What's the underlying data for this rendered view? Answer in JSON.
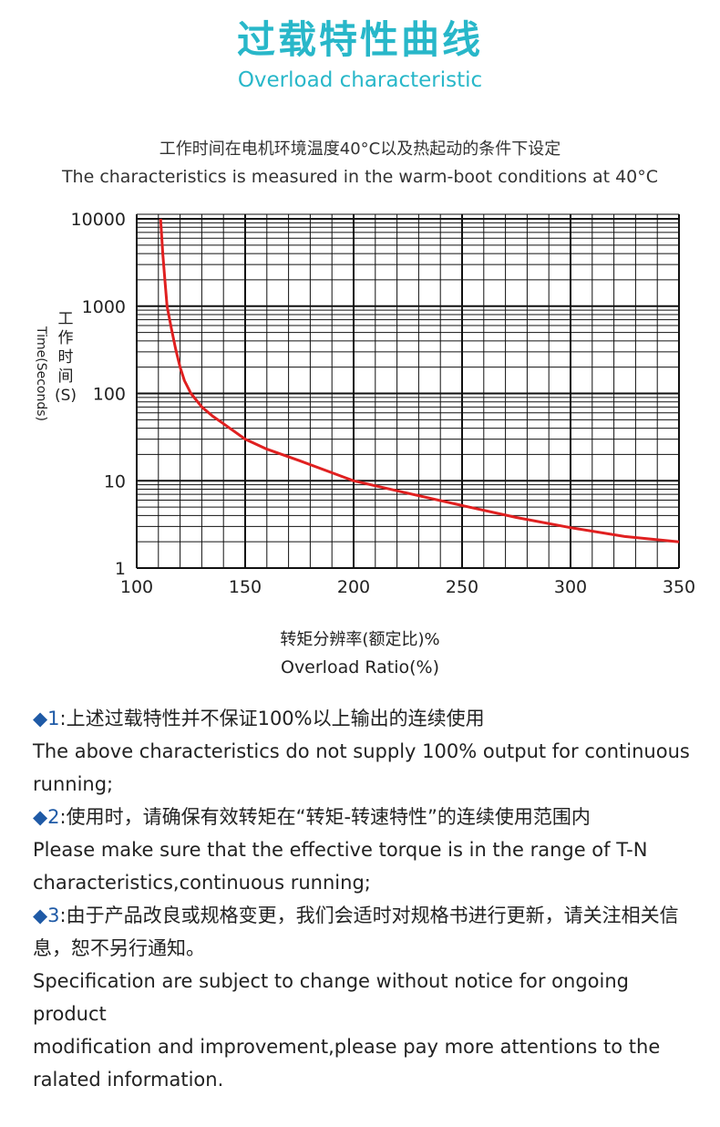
{
  "header": {
    "title_cn": "过载特性曲线",
    "title_en": "Overload characteristic",
    "title_color": "#28b7c9"
  },
  "conditions": {
    "cn": "工作时间在电机环境温度40°C以及热起动的条件下设定",
    "en": "The characteristics is measured in the warm-boot conditions at 40°C"
  },
  "chart_data": {
    "type": "line",
    "xlabel": "转矩分辨率(额定比)% Overload Ratio(%)",
    "xlabel_cn": "转矩分辨率(额定比)%",
    "xlabel_en": "Overload Ratio(%)",
    "ylabel_cn": "工作时间(S)",
    "ylabel_en": "Time(Seconds)",
    "xlim": [
      100,
      350
    ],
    "ylim": [
      1,
      10000
    ],
    "y_scale": "log",
    "x_ticks": [
      "100",
      "150",
      "200",
      "250",
      "300",
      "350"
    ],
    "y_ticks": [
      "1",
      "10",
      "100",
      "1000",
      "10000"
    ],
    "grid": true,
    "line_color": "#e02020",
    "series": [
      {
        "x": [
          111,
          112,
          113,
          114,
          116,
          118,
          120,
          122,
          125,
          130,
          135,
          140,
          150,
          160,
          175,
          200,
          225,
          250,
          275,
          300,
          325,
          350
        ],
        "values": [
          10000,
          4000,
          2000,
          1000,
          550,
          320,
          200,
          140,
          100,
          70,
          55,
          45,
          30,
          23,
          17,
          10,
          7.2,
          5.2,
          3.8,
          2.9,
          2.3,
          2.0
        ]
      }
    ]
  },
  "notes": [
    {
      "marker": "◆1",
      "cn": ":上述过载特性并不保证100%以上输出的连续使用",
      "en": "The above characteristics do not supply 100% output for continuous running;"
    },
    {
      "marker": "◆2",
      "cn": ":使用时，请确保有效转矩在“转矩-转速特性”的连续使用范围内",
      "en": "Please make sure that the effective torque is in the range of T-N characteristics,continuous running;"
    },
    {
      "marker": "◆3",
      "cn": ":由于产品改良或规格变更，我们会适时对规格书进行更新，请关注相关信息，恕不另行通知。",
      "en": "Specification are subject to change without notice for ongoing product",
      "en2": "modification and improvement,please pay more attentions to the ralated information."
    }
  ]
}
